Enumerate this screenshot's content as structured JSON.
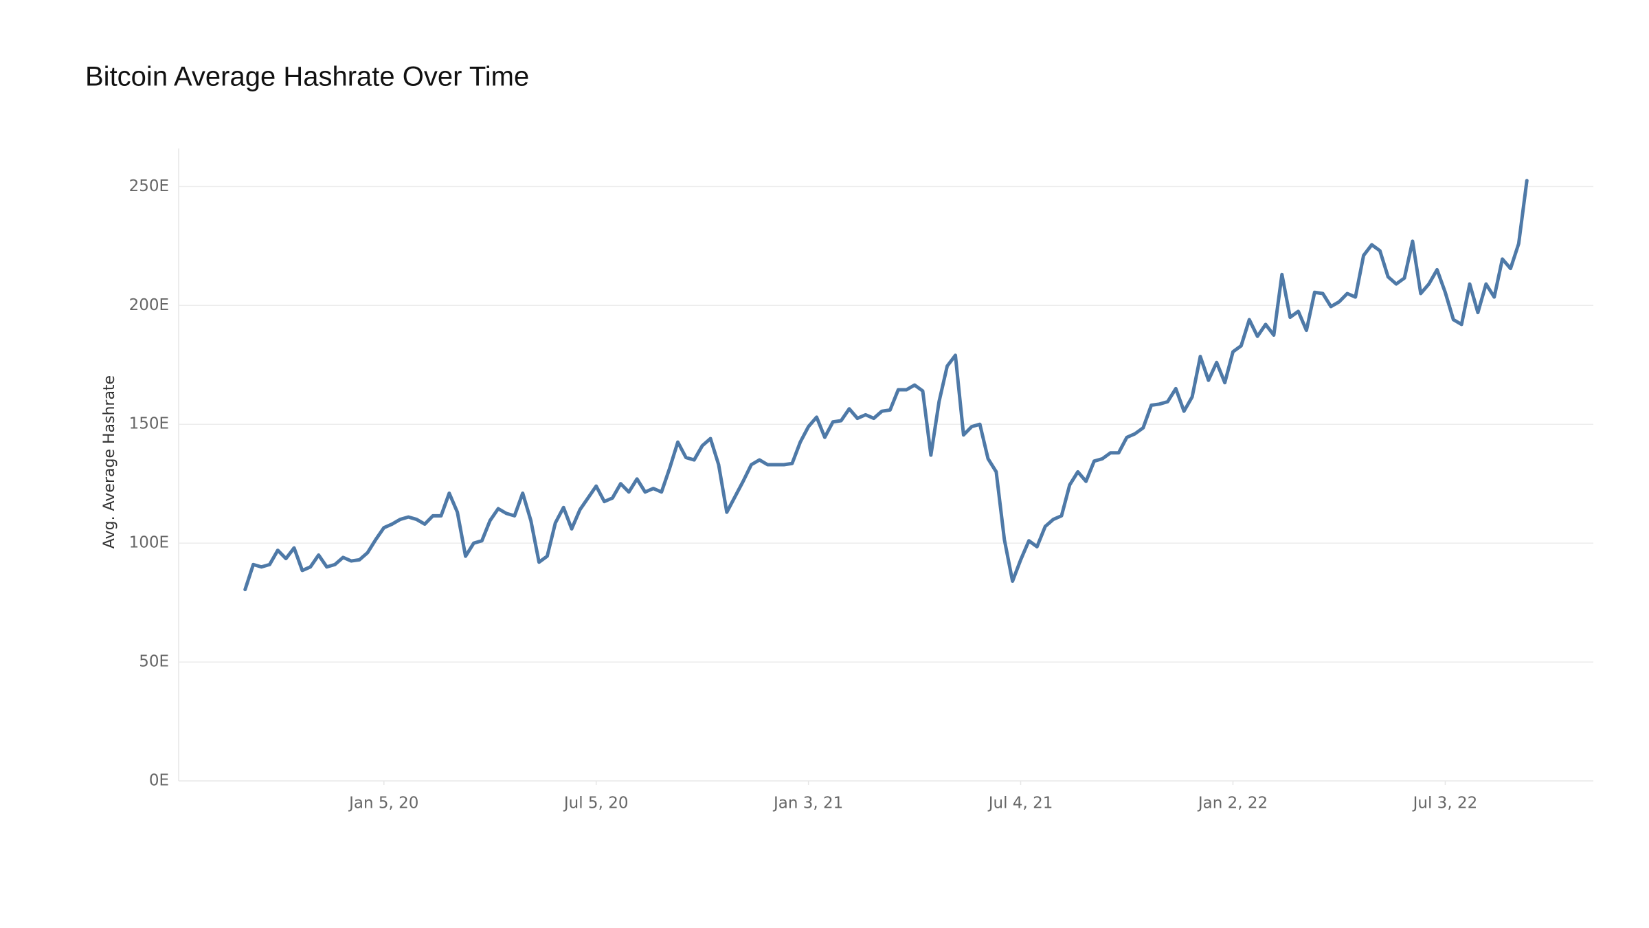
{
  "chart_data": {
    "type": "line",
    "title": "Bitcoin Average Hashrate Over Time",
    "y_label": "Avg. Average Hashrate",
    "color": "#4e79a7",
    "grid": true,
    "x": [
      "2019-09-08",
      "2019-09-15",
      "2019-09-22",
      "2019-09-29",
      "2019-10-06",
      "2019-10-13",
      "2019-10-20",
      "2019-10-27",
      "2019-11-03",
      "2019-11-10",
      "2019-11-17",
      "2019-11-24",
      "2019-12-01",
      "2019-12-08",
      "2019-12-15",
      "2019-12-22",
      "2019-12-29",
      "2020-01-05",
      "2020-01-12",
      "2020-01-19",
      "2020-01-26",
      "2020-02-02",
      "2020-02-09",
      "2020-02-16",
      "2020-02-23",
      "2020-03-01",
      "2020-03-08",
      "2020-03-15",
      "2020-03-22",
      "2020-03-29",
      "2020-04-05",
      "2020-04-12",
      "2020-04-19",
      "2020-04-26",
      "2020-05-03",
      "2020-05-10",
      "2020-05-17",
      "2020-05-24",
      "2020-05-31",
      "2020-06-07",
      "2020-06-14",
      "2020-06-21",
      "2020-06-28",
      "2020-07-05",
      "2020-07-12",
      "2020-07-19",
      "2020-07-26",
      "2020-08-02",
      "2020-08-09",
      "2020-08-16",
      "2020-08-23",
      "2020-08-30",
      "2020-09-06",
      "2020-09-13",
      "2020-09-20",
      "2020-09-27",
      "2020-10-04",
      "2020-10-11",
      "2020-10-18",
      "2020-10-25",
      "2020-11-01",
      "2020-11-08",
      "2020-11-15",
      "2020-11-22",
      "2020-11-29",
      "2020-12-06",
      "2020-12-13",
      "2020-12-20",
      "2020-12-27",
      "2021-01-03",
      "2021-01-10",
      "2021-01-17",
      "2021-01-24",
      "2021-01-31",
      "2021-02-07",
      "2021-02-14",
      "2021-02-21",
      "2021-02-28",
      "2021-03-07",
      "2021-03-14",
      "2021-03-21",
      "2021-03-28",
      "2021-04-04",
      "2021-04-11",
      "2021-04-18",
      "2021-04-25",
      "2021-05-02",
      "2021-05-09",
      "2021-05-16",
      "2021-05-23",
      "2021-05-30",
      "2021-06-06",
      "2021-06-13",
      "2021-06-20",
      "2021-06-27",
      "2021-07-04",
      "2021-07-11",
      "2021-07-18",
      "2021-07-25",
      "2021-08-01",
      "2021-08-08",
      "2021-08-15",
      "2021-08-22",
      "2021-08-29",
      "2021-09-05",
      "2021-09-12",
      "2021-09-19",
      "2021-09-26",
      "2021-10-03",
      "2021-10-10",
      "2021-10-17",
      "2021-10-24",
      "2021-10-31",
      "2021-11-07",
      "2021-11-14",
      "2021-11-21",
      "2021-11-28",
      "2021-12-05",
      "2021-12-12",
      "2021-12-19",
      "2021-12-26",
      "2022-01-02",
      "2022-01-09",
      "2022-01-16",
      "2022-01-23",
      "2022-01-30",
      "2022-02-06",
      "2022-02-13",
      "2022-02-20",
      "2022-02-27",
      "2022-03-06",
      "2022-03-13",
      "2022-03-20",
      "2022-03-27",
      "2022-04-03",
      "2022-04-10",
      "2022-04-17",
      "2022-04-24",
      "2022-05-01",
      "2022-05-08",
      "2022-05-15",
      "2022-05-22",
      "2022-05-29",
      "2022-06-05",
      "2022-06-12",
      "2022-06-19",
      "2022-06-26",
      "2022-07-03",
      "2022-07-10",
      "2022-07-17",
      "2022-07-24",
      "2022-07-31",
      "2022-08-07",
      "2022-08-14",
      "2022-08-21",
      "2022-08-28",
      "2022-09-04",
      "2022-09-11"
    ],
    "values": [
      80.5,
      91,
      90,
      91,
      97,
      93.5,
      98,
      88.5,
      90,
      95,
      90,
      91,
      94,
      92.5,
      93,
      96,
      101.5,
      106.5,
      108,
      110,
      111,
      110,
      108,
      111.5,
      111.5,
      121,
      113,
      94.5,
      100,
      101,
      109.5,
      114.5,
      112.5,
      111.5,
      121,
      109.5,
      92,
      94.5,
      108.5,
      115,
      106,
      114,
      119,
      124,
      117.5,
      119,
      125,
      121.5,
      127,
      121.5,
      123,
      121.5,
      131.5,
      142.5,
      136,
      135,
      141,
      144,
      133,
      113,
      119.5,
      126,
      133,
      135,
      133,
      133,
      133,
      133.5,
      142.5,
      149,
      153,
      144.5,
      151,
      151.5,
      156.5,
      152.5,
      154,
      152.5,
      155.5,
      156,
      164.5,
      164.5,
      166.5,
      164,
      137,
      159.5,
      174.5,
      179,
      145.5,
      149,
      150,
      135.5,
      130,
      101.5,
      84,
      93,
      101,
      98.5,
      107,
      110,
      111.5,
      124.5,
      130,
      126,
      134.5,
      135.5,
      138,
      138,
      144.5,
      146,
      148.5,
      158,
      158.5,
      159.5,
      165,
      155.5,
      161.5,
      178.5,
      168.5,
      176,
      167.5,
      180.5,
      183,
      194,
      187,
      192,
      187.5,
      213,
      195,
      197.5,
      189.5,
      205.5,
      205,
      199.5,
      201.5,
      205,
      203.5,
      221,
      225.5,
      223,
      212,
      209,
      211.5,
      227,
      205,
      209,
      215,
      205.5,
      194,
      192,
      209,
      197,
      209,
      203.5,
      219.5,
      215.5,
      226,
      252.5
    ],
    "xlim": [
      "2019-07-13",
      "2022-11-07"
    ],
    "xticks": [
      {
        "value": "2020-01-05",
        "label": "Jan 5, 20"
      },
      {
        "value": "2020-07-05",
        "label": "Jul 5, 20"
      },
      {
        "value": "2021-01-03",
        "label": "Jan 3, 21"
      },
      {
        "value": "2021-07-04",
        "label": "Jul 4, 21"
      },
      {
        "value": "2022-01-02",
        "label": "Jan 2, 22"
      },
      {
        "value": "2022-07-03",
        "label": "Jul 3, 22"
      }
    ],
    "ylim": [
      0,
      266
    ],
    "yticks": [
      {
        "value": 0,
        "label": "0E"
      },
      {
        "value": 50,
        "label": "50E"
      },
      {
        "value": 100,
        "label": "100E"
      },
      {
        "value": 150,
        "label": "150E"
      },
      {
        "value": 200,
        "label": "200E"
      },
      {
        "value": 250,
        "label": "250E"
      }
    ]
  }
}
